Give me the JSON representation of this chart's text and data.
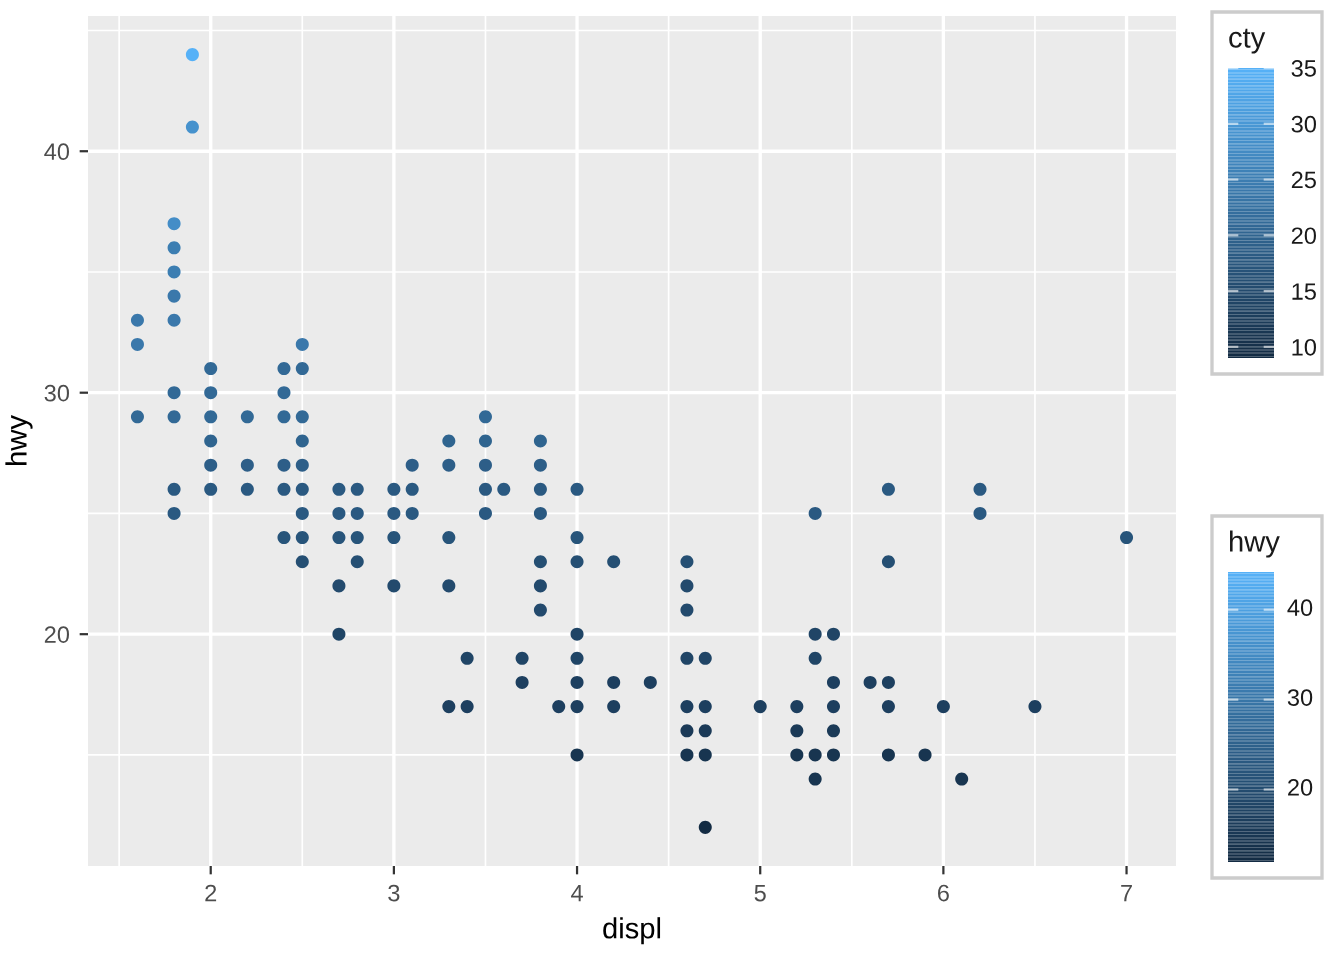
{
  "chart_data": [
    {
      "type": "scatter",
      "xlabel": "displ",
      "ylabel": "hwy",
      "clabel": "cty",
      "x": [
        1.9,
        1.9,
        1.8,
        1.8,
        1.8,
        1.8,
        1.8,
        1.8,
        1.8,
        1.8,
        1.8,
        1.6,
        1.6,
        1.6,
        2.0,
        2.0,
        2.0,
        2.0,
        2.0,
        2.0,
        2.2,
        2.2,
        2.2,
        2.4,
        2.4,
        2.4,
        2.4,
        2.4,
        2.4,
        2.5,
        2.5,
        2.5,
        2.5,
        2.5,
        2.5,
        2.5,
        2.5,
        2.5,
        2.7,
        2.7,
        2.7,
        2.7,
        2.7,
        2.8,
        2.8,
        2.8,
        2.8,
        3.0,
        3.0,
        3.0,
        3.0,
        3.1,
        3.1,
        3.1,
        3.3,
        3.3,
        3.3,
        3.3,
        3.3,
        3.4,
        3.4,
        3.5,
        3.5,
        3.5,
        3.5,
        3.5,
        3.6,
        3.7,
        3.7,
        3.8,
        3.8,
        3.8,
        3.8,
        3.8,
        3.8,
        3.8,
        3.9,
        4.0,
        4.0,
        4.0,
        4.0,
        4.0,
        4.0,
        4.0,
        4.0,
        4.2,
        4.2,
        4.2,
        4.4,
        4.6,
        4.6,
        4.6,
        4.6,
        4.6,
        4.6,
        4.6,
        4.7,
        4.7,
        4.7,
        4.7,
        4.7,
        5.0,
        5.2,
        5.2,
        5.2,
        5.3,
        5.3,
        5.3,
        5.3,
        5.3,
        5.4,
        5.4,
        5.4,
        5.4,
        5.4,
        5.6,
        5.7,
        5.7,
        5.7,
        5.7,
        5.7,
        5.9,
        6.0,
        6.1,
        6.2,
        6.2,
        6.5,
        7.0
      ],
      "values": [
        44,
        41,
        37,
        36,
        35,
        34,
        33,
        30,
        29,
        26,
        25,
        33,
        32,
        29,
        31,
        30,
        29,
        28,
        27,
        26,
        29,
        27,
        26,
        31,
        30,
        29,
        27,
        26,
        24,
        32,
        31,
        29,
        28,
        27,
        26,
        25,
        24,
        23,
        26,
        25,
        24,
        22,
        20,
        26,
        25,
        24,
        23,
        26,
        25,
        24,
        22,
        27,
        26,
        25,
        28,
        27,
        24,
        22,
        17,
        19,
        17,
        29,
        28,
        27,
        26,
        25,
        26,
        19,
        18,
        28,
        27,
        26,
        25,
        23,
        22,
        21,
        17,
        26,
        24,
        23,
        20,
        19,
        18,
        17,
        15,
        23,
        18,
        17,
        18,
        23,
        22,
        21,
        19,
        17,
        16,
        15,
        19,
        17,
        16,
        15,
        12,
        17,
        17,
        16,
        15,
        25,
        20,
        19,
        15,
        14,
        20,
        18,
        17,
        16,
        15,
        18,
        26,
        23,
        18,
        17,
        15,
        15,
        17,
        14,
        26,
        25,
        17,
        24
      ],
      "cvalues": [
        35,
        29,
        28,
        25,
        25,
        24,
        24,
        21,
        21,
        18,
        18,
        24,
        24,
        21,
        21,
        21,
        21,
        20,
        19,
        18,
        21,
        19,
        18,
        21,
        21,
        21,
        19,
        18,
        17,
        24,
        21,
        21,
        20,
        19,
        18,
        18,
        17,
        16,
        18,
        18,
        17,
        15,
        14,
        18,
        18,
        17,
        16,
        18,
        18,
        17,
        15,
        19,
        18,
        18,
        20,
        19,
        17,
        15,
        13,
        14,
        13,
        21,
        20,
        19,
        18,
        18,
        18,
        14,
        13,
        20,
        19,
        18,
        18,
        16,
        15,
        15,
        13,
        18,
        17,
        16,
        14,
        14,
        13,
        13,
        11,
        16,
        13,
        13,
        13,
        16,
        15,
        15,
        14,
        13,
        12,
        11,
        14,
        13,
        12,
        11,
        9,
        13,
        13,
        12,
        11,
        18,
        14,
        14,
        11,
        11,
        14,
        13,
        13,
        12,
        11,
        13,
        18,
        16,
        13,
        13,
        11,
        11,
        13,
        11,
        18,
        18,
        13,
        17
      ],
      "xlim": [
        1.33,
        7.27
      ],
      "ylim": [
        10.4,
        45.6
      ],
      "xticks": [
        2,
        3,
        4,
        5,
        6,
        7
      ],
      "yticks": [
        20,
        30,
        40
      ],
      "clim": [
        9,
        35
      ],
      "cticks": [
        10,
        15,
        20,
        25,
        30,
        35
      ],
      "grid": true,
      "marker": "circle"
    },
    {
      "type": "other",
      "clabel": "hwy",
      "annotations": [
        "40",
        "30",
        "20"
      ]
    }
  ]
}
